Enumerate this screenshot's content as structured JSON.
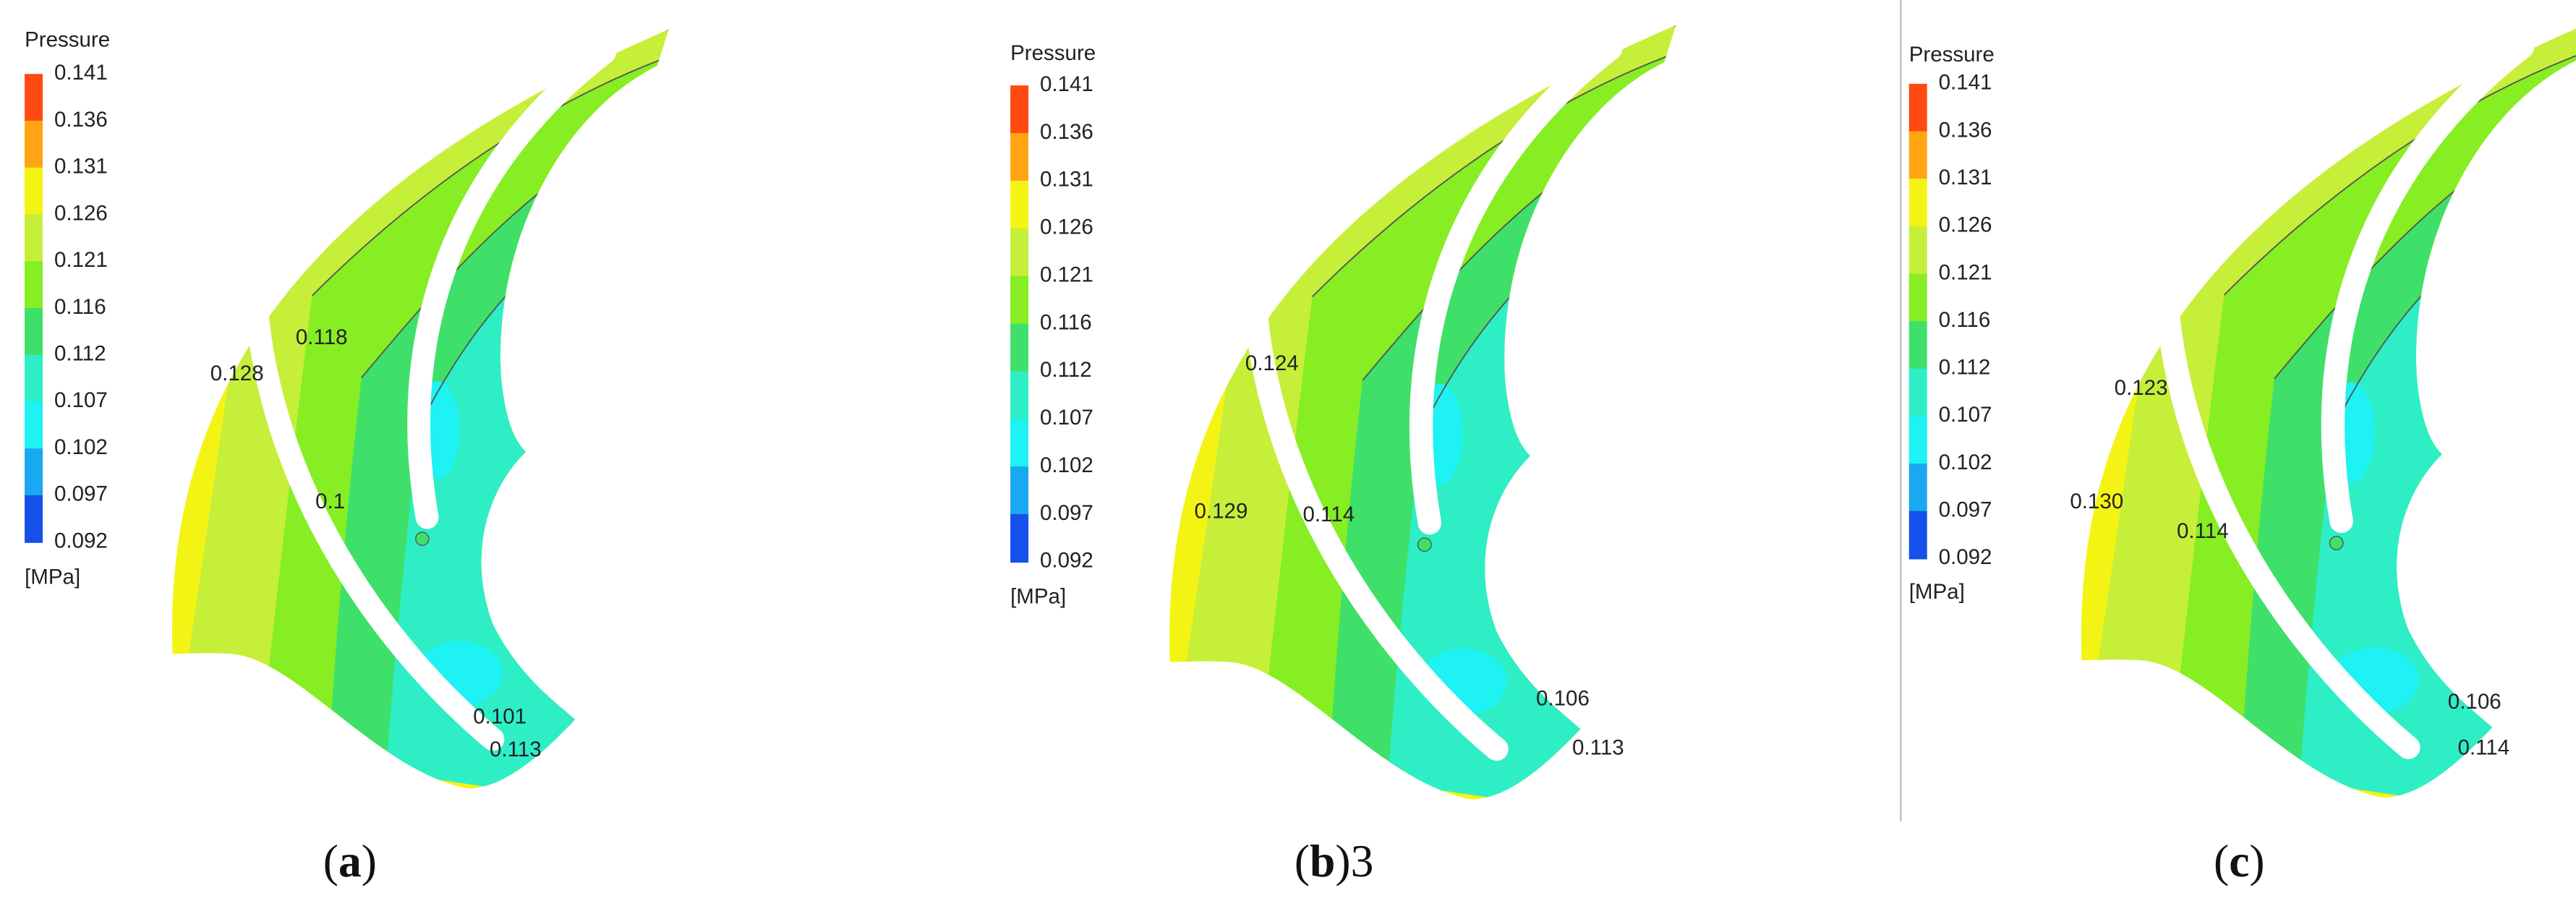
{
  "panels": [
    {
      "legend": {
        "title": "Pressure",
        "ticks": [
          "0.141",
          "0.136",
          "0.131",
          "0.126",
          "0.121",
          "0.116",
          "0.112",
          "0.107",
          "0.102",
          "0.097",
          "0.092"
        ],
        "unit": "[MPa]"
      },
      "contour_labels": [
        "0.128",
        "0.118",
        "0.1",
        "0.101",
        "0.113"
      ],
      "caption": {
        "open": "(",
        "letter": "a",
        "close": ")"
      }
    },
    {
      "legend": {
        "title": "Pressure",
        "ticks": [
          "0.141",
          "0.136",
          "0.131",
          "0.126",
          "0.121",
          "0.116",
          "0.112",
          "0.107",
          "0.102",
          "0.097",
          "0.092"
        ],
        "unit": "[MPa]"
      },
      "contour_labels": [
        "0.124",
        "0.129",
        "0.114",
        "0.106",
        "0.113"
      ],
      "caption": {
        "open": "(",
        "letter": "b",
        "close": ")3"
      }
    },
    {
      "legend": {
        "title": "Pressure",
        "ticks": [
          "0.141",
          "0.136",
          "0.131",
          "0.126",
          "0.121",
          "0.116",
          "0.112",
          "0.107",
          "0.102",
          "0.097",
          "0.092"
        ],
        "unit": "[MPa]"
      },
      "contour_labels": [
        "0.123",
        "0.130",
        "0.114",
        "0.106",
        "0.114"
      ],
      "caption": {
        "open": "(",
        "letter": "c",
        "close": ")"
      }
    }
  ]
}
